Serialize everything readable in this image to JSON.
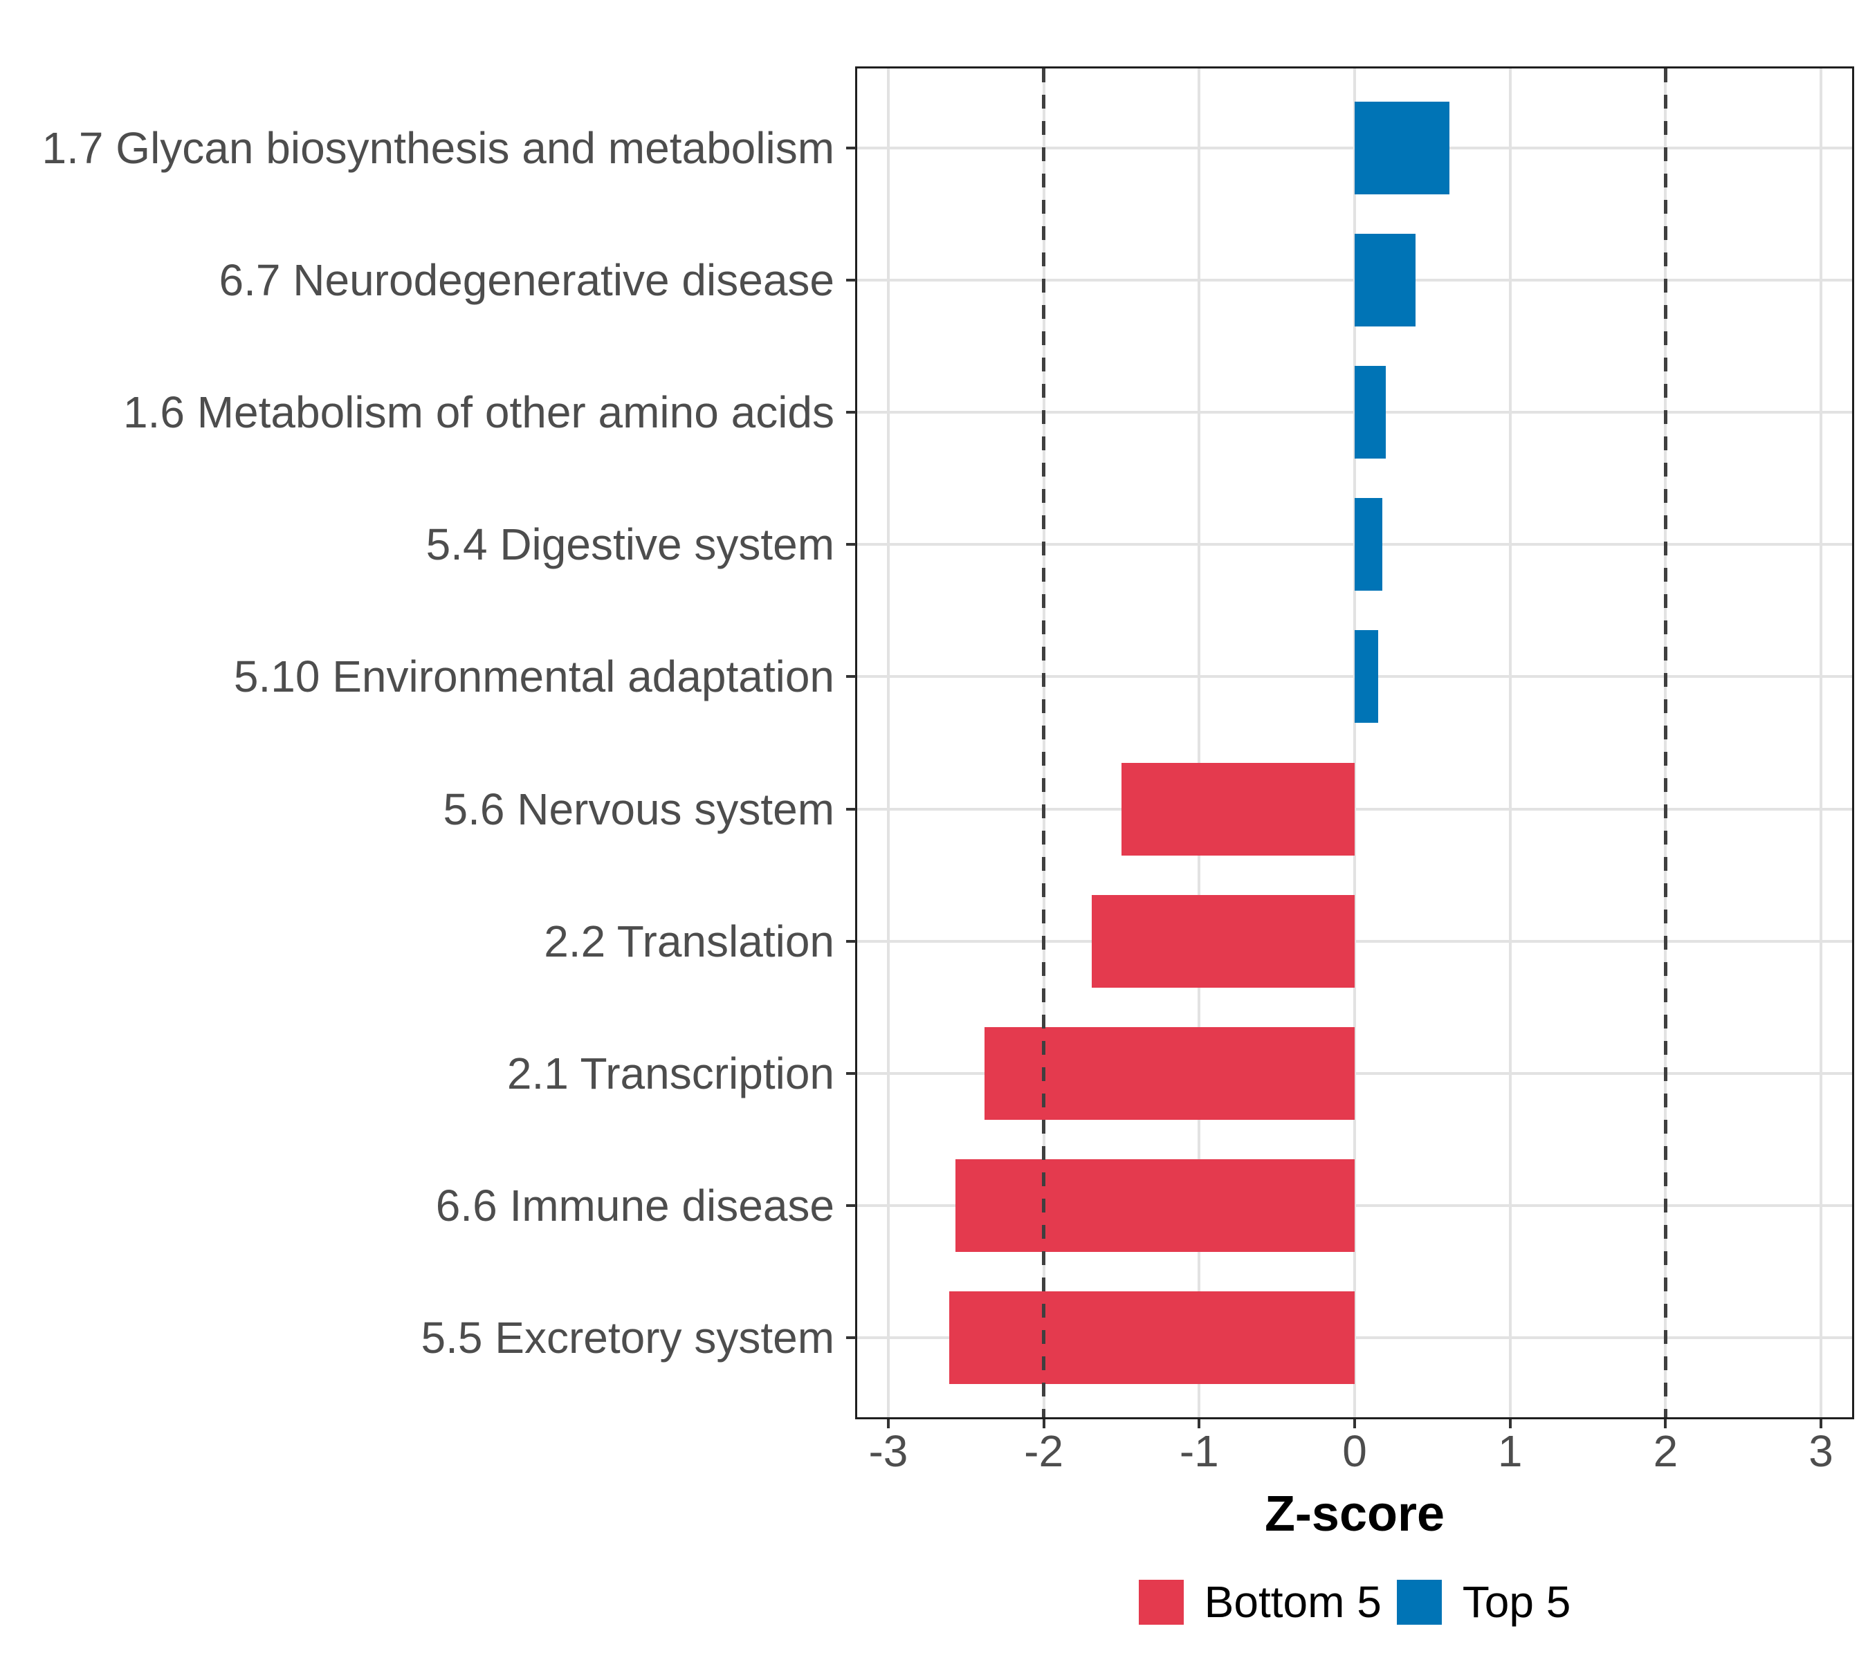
{
  "chart_data": {
    "type": "bar",
    "orientation": "horizontal",
    "title": "",
    "xlabel": "Z-score",
    "ylabel": "",
    "xlim": [
      -3.2,
      3.2
    ],
    "x_ticks": [
      -3,
      -2,
      -1,
      0,
      1,
      2,
      3
    ],
    "grid": true,
    "legend_position": "bottom",
    "reference_lines": {
      "values": [
        -2,
        2
      ],
      "style": "dashed",
      "color": "#3f3f3f"
    },
    "categories": [
      "1.7 Glycan biosynthesis and metabolism",
      "6.7 Neurodegenerative disease",
      "1.6 Metabolism of other amino acids",
      "5.4 Digestive system",
      "5.10 Environmental adaptation",
      "5.6 Nervous system",
      "2.2 Translation",
      "2.1 Transcription",
      "6.6 Immune disease",
      "5.5 Excretory system"
    ],
    "values": [
      0.61,
      0.39,
      0.2,
      0.18,
      0.15,
      -1.5,
      -1.69,
      -2.38,
      -2.57,
      -2.61
    ],
    "groups": [
      "Top 5",
      "Top 5",
      "Top 5",
      "Top 5",
      "Top 5",
      "Bottom 5",
      "Bottom 5",
      "Bottom 5",
      "Bottom 5",
      "Bottom 5"
    ],
    "group_colors": {
      "Bottom 5": "#e43a4e",
      "Top 5": "#0074b6"
    }
  },
  "legend": {
    "items": [
      {
        "label": "Bottom 5",
        "color": "#e43a4e"
      },
      {
        "label": "Top 5",
        "color": "#0074b6"
      }
    ]
  },
  "style": {
    "background": "#ffffff",
    "grid_color": "#e2e2e2",
    "panel_border_color": "#1f1f1f",
    "tick_color": "#333333",
    "axis_text_color": "#4d4d4d",
    "axis_title_color": "#000000",
    "reference_line_color": "#3f3f3f"
  }
}
